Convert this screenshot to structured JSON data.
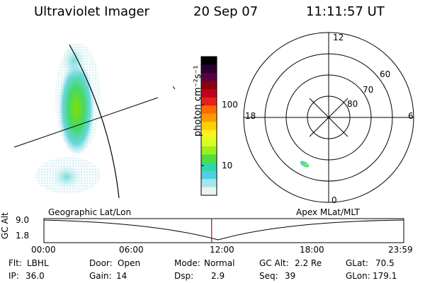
{
  "header": {
    "title": "Ultraviolet Imager",
    "date": "20 Sep 07",
    "time": "11:11:57 UT"
  },
  "colorbar": {
    "label": "photon cm⁻²s⁻¹",
    "ticks": [
      "100",
      "10"
    ],
    "colors": [
      "#000000",
      "#2a0033",
      "#5b0040",
      "#8a0010",
      "#c0001a",
      "#e8201a",
      "#ff6a00",
      "#ff9a00",
      "#ffd000",
      "#fff020",
      "#d8ff20",
      "#9cf020",
      "#4ee040",
      "#2fd8a8",
      "#4fd0e0",
      "#a8e4ec",
      "#e8f4f6"
    ]
  },
  "polar": {
    "hour_labels": {
      "top": "12",
      "left": "18",
      "right": "6",
      "bottom": "0"
    },
    "lat_labels": [
      "60",
      "70",
      "80"
    ]
  },
  "timeline": {
    "ylabel": "GC Alt",
    "ymax": "9.0",
    "ymin": "1.8",
    "left_label": "Geographic Lat/Lon",
    "right_label": "Apex  MLat/MLT",
    "x_ticks": [
      "00:00",
      "06:00",
      "12:00",
      "18:00",
      "23:59"
    ],
    "current_time_fraction": 0.466
  },
  "info": {
    "flt_label": "Flt:",
    "flt_value": "LBHL",
    "door_label": "Door:",
    "door_value": "Open",
    "mode_label": "Mode:",
    "mode_value": "Normal",
    "gcalt_label": "GC Alt:",
    "gcalt_value": "2.2 Re",
    "glat_label": "GLat:",
    "glat_value": "70.5",
    "ip_label": "IP:",
    "ip_value": "36.0",
    "gain_label": "Gain:",
    "gain_value": "14",
    "dsp_label": "Dsp:",
    "dsp_value": "2.9",
    "seq_label": "Seq:",
    "seq_value": "39",
    "glon_label": "GLon:",
    "glon_value": "179.1"
  }
}
